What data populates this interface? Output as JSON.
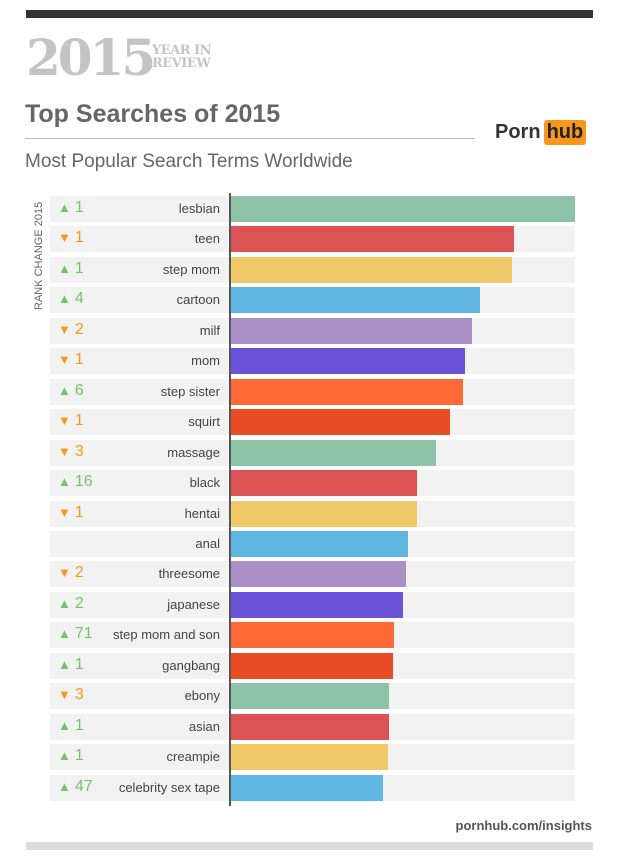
{
  "header": {
    "year": "2015",
    "year_in": "YEAR IN",
    "review": "REVIEW",
    "title": "Top Searches of 2015",
    "subtitle": "Most Popular Search Terms Worldwide",
    "logo_left": "Porn",
    "logo_right": "hub",
    "footer": "pornhub.com/insights"
  },
  "colors": {
    "up": "#76c26c",
    "down": "#f7971d",
    "bar_cycle": [
      "#8dc3a7",
      "#dc5356",
      "#f0ca69",
      "#5fb6e3",
      "#ab8fc7",
      "#6c52d9",
      "#fd6a37",
      "#e84d25"
    ]
  },
  "chart_data": {
    "type": "bar",
    "orientation": "horizontal",
    "title": "Top Searches of 2015",
    "subtitle": "Most Popular Search Terms Worldwide",
    "ylabel": "RANK CHANGE 2015",
    "value_unit": "relative popularity (% of top term)",
    "categories": [
      "lesbian",
      "teen",
      "step mom",
      "cartoon",
      "milf",
      "mom",
      "step sister",
      "squirt",
      "massage",
      "black",
      "hentai",
      "anal",
      "threesome",
      "japanese",
      "step mom and son",
      "gangbang",
      "ebony",
      "asian",
      "creampie",
      "celebrity sex tape"
    ],
    "values": [
      100,
      82.3,
      81.7,
      72.4,
      70.1,
      68.0,
      67.4,
      63.7,
      59.6,
      54.1,
      54.1,
      51.5,
      50.9,
      50.0,
      47.4,
      47.1,
      45.9,
      45.9,
      45.6,
      44.2
    ],
    "rank_change": [
      {
        "dir": "up",
        "value": "1"
      },
      {
        "dir": "down",
        "value": "1"
      },
      {
        "dir": "up",
        "value": "1"
      },
      {
        "dir": "up",
        "value": "4"
      },
      {
        "dir": "down",
        "value": "2"
      },
      {
        "dir": "down",
        "value": "1"
      },
      {
        "dir": "up",
        "value": "6"
      },
      {
        "dir": "down",
        "value": "1"
      },
      {
        "dir": "down",
        "value": "3"
      },
      {
        "dir": "up",
        "value": "16"
      },
      {
        "dir": "down",
        "value": "1"
      },
      {
        "dir": "none",
        "value": ""
      },
      {
        "dir": "down",
        "value": "2"
      },
      {
        "dir": "up",
        "value": "2"
      },
      {
        "dir": "up",
        "value": "71"
      },
      {
        "dir": "up",
        "value": "1"
      },
      {
        "dir": "down",
        "value": "3"
      },
      {
        "dir": "up",
        "value": "1"
      },
      {
        "dir": "up",
        "value": "1"
      },
      {
        "dir": "up",
        "value": "47"
      }
    ],
    "xlim": [
      0,
      100
    ],
    "grid": false,
    "legend": "none"
  }
}
